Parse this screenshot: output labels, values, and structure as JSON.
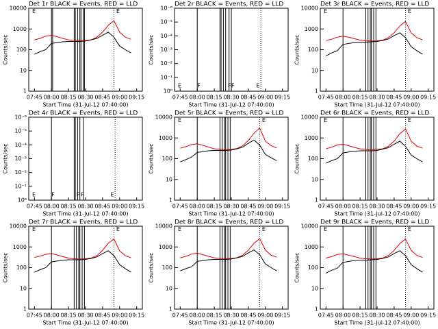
{
  "chart_data": [
    {
      "type": "line",
      "title": "Det 1r BLACK = Events, RED = LLD",
      "xlabel": "Start Time (31-Jul-12 07:40:00)",
      "ylabel": "Counts/sec",
      "x": [
        "07:45",
        "07:50",
        "07:55",
        "08:00",
        "08:05",
        "08:10",
        "08:15",
        "08:20",
        "08:25",
        "08:30",
        "08:35",
        "08:40",
        "08:45",
        "08:50",
        "08:55",
        "09:00",
        "09:05",
        "09:10"
      ],
      "series": [
        {
          "color": "#e00000",
          "values": [
            300,
            350,
            450,
            500,
            420,
            350,
            300,
            280,
            270,
            280,
            300,
            400,
            700,
            1500,
            2500,
            700,
            400,
            320
          ]
        },
        {
          "color": "#000000",
          "values": [
            60,
            80,
            100,
            200,
            220,
            240,
            250,
            250,
            250,
            260,
            300,
            350,
            500,
            700,
            400,
            150,
            100,
            70
          ]
        }
      ],
      "xlim": [
        "07:40",
        "09:20"
      ],
      "xticks": [
        "07:45",
        "08:00",
        "08:15",
        "08:30",
        "08:45",
        "09:00",
        "09:15"
      ],
      "ylim": [
        1,
        10000
      ],
      "yticks": [
        1,
        10,
        100,
        1000,
        10000
      ],
      "log_y": true,
      "vlines": [
        "08:00",
        "08:01",
        "08:20",
        "08:21",
        "08:23",
        "08:25",
        "08:26",
        "08:28",
        "08:29"
      ],
      "dotted_vlines": [
        "08:55"
      ],
      "annotations": [
        {
          "text": "E",
          "x": "07:43",
          "y": 7000
        },
        {
          "text": "E",
          "x": "08:57",
          "y": 7000
        }
      ]
    },
    {
      "type": "line",
      "title": "Det 2r BLACK = Events, RED = LLD",
      "xlabel": "Start Time (31-Jul-12 07:40:00)",
      "ylabel": "Counts/sec",
      "series": [],
      "xlim": [
        "07:40",
        "09:20"
      ],
      "xticks": [
        "07:45",
        "08:00",
        "08:15",
        "08:30",
        "08:45",
        "09:00",
        "09:15"
      ],
      "ylim": [
        1,
        1e-06
      ],
      "yticks": [
        {
          "value": 1e-06,
          "label": "10⁻⁶"
        },
        {
          "value": 1e-05,
          "label": "10⁻⁵"
        },
        {
          "value": 0.0001,
          "label": "10⁻⁴"
        },
        {
          "value": 0.001,
          "label": "10⁻³"
        },
        {
          "value": 0.01,
          "label": "10⁻²"
        },
        {
          "value": 0.1,
          "label": "10⁻¹"
        },
        {
          "value": 1,
          "label": "10⁰"
        }
      ],
      "log_y": true,
      "vlines": [
        "08:00",
        "08:20",
        "08:21",
        "08:23",
        "08:25",
        "08:28",
        "08:30"
      ],
      "dotted_vlines": [
        "08:56"
      ],
      "annotations": [
        {
          "text": "E",
          "x": "07:43",
          "y": 0.4
        },
        {
          "text": "F",
          "x": "08:00",
          "y": 0.4
        },
        {
          "text": "F",
          "x": "08:27",
          "y": 0.4
        },
        {
          "text": "F",
          "x": "08:30",
          "y": 0.4
        },
        {
          "text": "E",
          "x": "08:52",
          "y": 0.4
        }
      ]
    },
    {
      "type": "line",
      "title": "Det 3r BLACK = Events, RED = LLD",
      "xlabel": "Start Time (31-Jul-12 07:40:00)",
      "ylabel": "Counts/sec",
      "x": [
        "07:45",
        "07:50",
        "07:55",
        "08:00",
        "08:05",
        "08:10",
        "08:15",
        "08:20",
        "08:25",
        "08:30",
        "08:35",
        "08:40",
        "08:45",
        "08:50",
        "08:55",
        "09:00",
        "09:05",
        "09:10"
      ],
      "series": [
        {
          "color": "#e00000",
          "values": [
            280,
            320,
            400,
            450,
            400,
            340,
            290,
            270,
            260,
            270,
            290,
            380,
            650,
            1400,
            2300,
            650,
            380,
            300
          ]
        },
        {
          "color": "#000000",
          "values": [
            50,
            70,
            90,
            180,
            200,
            220,
            230,
            230,
            240,
            250,
            280,
            330,
            480,
            650,
            380,
            140,
            90,
            60
          ]
        }
      ],
      "xlim": [
        "07:40",
        "09:20"
      ],
      "xticks": [
        "07:45",
        "08:00",
        "08:15",
        "08:30",
        "08:45",
        "09:00",
        "09:15"
      ],
      "ylim": [
        1,
        10000
      ],
      "yticks": [
        1,
        10,
        100,
        1000,
        10000
      ],
      "log_y": true,
      "vlines": [
        "08:00",
        "08:20",
        "08:22",
        "08:24",
        "08:25",
        "08:27",
        "08:29"
      ],
      "dotted_vlines": [
        "08:55"
      ],
      "annotations": [
        {
          "text": "E",
          "x": "07:43",
          "y": 7000
        },
        {
          "text": "E",
          "x": "08:57",
          "y": 7000
        }
      ]
    },
    {
      "type": "line",
      "title": "Det 4r BLACK = Events, RED = LLD",
      "xlabel": "Start Time (31-Jul-12 07:40:00)",
      "ylabel": "Counts/sec",
      "series": [],
      "xlim": [
        "07:40",
        "09:20"
      ],
      "xticks": [
        "07:45",
        "08:00",
        "08:15",
        "08:30",
        "08:45",
        "09:00",
        "09:15"
      ],
      "ylim": [
        1,
        1e-06
      ],
      "yticks": [
        {
          "value": 1e-06,
          "label": "10⁻⁶"
        },
        {
          "value": 1e-05,
          "label": "10⁻⁵"
        },
        {
          "value": 0.0001,
          "label": "10⁻⁴"
        },
        {
          "value": 0.001,
          "label": "10⁻³"
        },
        {
          "value": 0.01,
          "label": "10⁻²"
        },
        {
          "value": 0.1,
          "label": "10⁻¹"
        },
        {
          "value": 1,
          "label": "10⁰"
        }
      ],
      "log_y": true,
      "vlines": [
        "08:00",
        "08:20",
        "08:21",
        "08:23",
        "08:25",
        "08:28"
      ],
      "dotted_vlines": [
        "08:56"
      ],
      "annotations": [
        {
          "text": "E",
          "x": "07:43",
          "y": 0.4
        },
        {
          "text": "F",
          "x": "08:00",
          "y": 0.4
        },
        {
          "text": "F",
          "x": "08:22",
          "y": 0.4
        },
        {
          "text": "F",
          "x": "08:26",
          "y": 0.4
        },
        {
          "text": "E",
          "x": "08:52",
          "y": 0.4
        }
      ]
    },
    {
      "type": "line",
      "title": "Det 5r BLACK = Events, RED = LLD",
      "xlabel": "Start Time (31-Jul-12 07:40:00)",
      "ylabel": "Counts/sec",
      "x": [
        "07:45",
        "07:50",
        "07:55",
        "08:00",
        "08:05",
        "08:10",
        "08:15",
        "08:20",
        "08:25",
        "08:30",
        "08:35",
        "08:40",
        "08:45",
        "08:50",
        "08:55",
        "09:00",
        "09:05",
        "09:10"
      ],
      "series": [
        {
          "color": "#e00000",
          "values": [
            320,
            380,
            480,
            520,
            440,
            360,
            300,
            280,
            270,
            280,
            310,
            420,
            750,
            1700,
            3000,
            700,
            420,
            330
          ]
        },
        {
          "color": "#000000",
          "values": [
            70,
            90,
            120,
            200,
            220,
            240,
            250,
            250,
            250,
            260,
            300,
            360,
            550,
            800,
            450,
            160,
            110,
            80
          ]
        }
      ],
      "xlim": [
        "07:40",
        "09:20"
      ],
      "xticks": [
        "07:45",
        "08:00",
        "08:15",
        "08:30",
        "08:45",
        "09:00",
        "09:15"
      ],
      "ylim": [
        1,
        10000
      ],
      "yticks": [
        1,
        10,
        100,
        1000,
        10000
      ],
      "log_y": true,
      "vlines": [
        "08:00",
        "08:20",
        "08:22",
        "08:24",
        "08:25",
        "08:27",
        "08:29"
      ],
      "dotted_vlines": [
        "08:55"
      ],
      "annotations": [
        {
          "text": "E",
          "x": "07:43",
          "y": 7000
        },
        {
          "text": "E",
          "x": "08:57",
          "y": 7000
        }
      ]
    },
    {
      "type": "line",
      "title": "Det 6r BLACK = Events, RED = LLD",
      "xlabel": "Start Time (31-Jul-12 07:40:00)",
      "ylabel": "Counts/sec",
      "x": [
        "07:45",
        "07:50",
        "07:55",
        "08:00",
        "08:05",
        "08:10",
        "08:15",
        "08:20",
        "08:25",
        "08:30",
        "08:35",
        "08:40",
        "08:45",
        "08:50",
        "08:55",
        "09:00",
        "09:05",
        "09:10"
      ],
      "series": [
        {
          "color": "#e00000",
          "values": [
            300,
            360,
            460,
            500,
            420,
            350,
            300,
            280,
            270,
            280,
            300,
            400,
            700,
            1600,
            2700,
            700,
            400,
            320
          ]
        },
        {
          "color": "#000000",
          "values": [
            60,
            80,
            100,
            190,
            210,
            230,
            240,
            240,
            240,
            250,
            290,
            340,
            500,
            700,
            400,
            150,
            100,
            70
          ]
        }
      ],
      "xlim": [
        "07:40",
        "09:20"
      ],
      "xticks": [
        "07:45",
        "08:00",
        "08:15",
        "08:30",
        "08:45",
        "09:00",
        "09:15"
      ],
      "ylim": [
        1,
        10000
      ],
      "yticks": [
        1,
        10,
        100,
        1000,
        10000
      ],
      "log_y": true,
      "vlines": [
        "08:00",
        "08:20",
        "08:22",
        "08:24",
        "08:25",
        "08:27",
        "08:29"
      ],
      "dotted_vlines": [
        "08:55"
      ],
      "annotations": [
        {
          "text": "E",
          "x": "07:43",
          "y": 7000
        },
        {
          "text": "E",
          "x": "08:57",
          "y": 7000
        }
      ]
    },
    {
      "type": "line",
      "title": "Det 7r BLACK = Events, RED = LLD",
      "xlabel": "Start Time (31-Jul-12 07:40:00)",
      "ylabel": "Counts/sec",
      "x": [
        "07:45",
        "07:50",
        "07:55",
        "08:00",
        "08:05",
        "08:10",
        "08:15",
        "08:20",
        "08:25",
        "08:30",
        "08:35",
        "08:40",
        "08:45",
        "08:50",
        "08:55",
        "09:00",
        "09:05",
        "09:10"
      ],
      "series": [
        {
          "color": "#e00000",
          "values": [
            310,
            360,
            440,
            480,
            410,
            340,
            290,
            270,
            260,
            270,
            290,
            380,
            680,
            1500,
            2400,
            650,
            380,
            300
          ]
        },
        {
          "color": "#000000",
          "values": [
            60,
            80,
            100,
            190,
            210,
            230,
            240,
            240,
            240,
            250,
            280,
            330,
            480,
            650,
            380,
            140,
            90,
            60
          ]
        }
      ],
      "xlim": [
        "07:40",
        "09:20"
      ],
      "xticks": [
        "07:45",
        "08:00",
        "08:15",
        "08:30",
        "08:45",
        "09:00",
        "09:15"
      ],
      "ylim": [
        1,
        10000
      ],
      "yticks": [
        1,
        10,
        100,
        1000,
        10000
      ],
      "log_y": true,
      "vlines": [
        "08:00",
        "08:20",
        "08:22",
        "08:24",
        "08:25",
        "08:27",
        "08:29"
      ],
      "dotted_vlines": [
        "08:55"
      ],
      "annotations": [
        {
          "text": "E",
          "x": "07:43",
          "y": 7000
        },
        {
          "text": "E",
          "x": "08:57",
          "y": 7000
        }
      ]
    },
    {
      "type": "line",
      "title": "Det 8r BLACK = Events, RED = LLD",
      "xlabel": "Start Time (31-Jul-12 07:40:00)",
      "ylabel": "Counts/sec",
      "x": [
        "07:45",
        "07:50",
        "07:55",
        "08:00",
        "08:05",
        "08:10",
        "08:15",
        "08:20",
        "08:25",
        "08:30",
        "08:35",
        "08:40",
        "08:45",
        "08:50",
        "08:55",
        "09:00",
        "09:05",
        "09:10"
      ],
      "series": [
        {
          "color": "#e00000",
          "values": [
            300,
            350,
            450,
            500,
            420,
            350,
            300,
            280,
            270,
            280,
            300,
            400,
            700,
            1500,
            2500,
            700,
            400,
            320
          ]
        },
        {
          "color": "#000000",
          "values": [
            70,
            90,
            110,
            200,
            220,
            240,
            250,
            250,
            250,
            260,
            300,
            350,
            520,
            720,
            420,
            150,
            100,
            70
          ]
        }
      ],
      "xlim": [
        "07:40",
        "09:20"
      ],
      "xticks": [
        "07:45",
        "08:00",
        "08:15",
        "08:30",
        "08:45",
        "09:00",
        "09:15"
      ],
      "ylim": [
        1,
        10000
      ],
      "yticks": [
        1,
        10,
        100,
        1000,
        10000
      ],
      "log_y": true,
      "vlines": [
        "08:00",
        "08:20",
        "08:22",
        "08:24",
        "08:25",
        "08:27",
        "08:29"
      ],
      "dotted_vlines": [
        "08:55"
      ],
      "annotations": [
        {
          "text": "E",
          "x": "07:43",
          "y": 7000
        },
        {
          "text": "E",
          "x": "08:57",
          "y": 7000
        }
      ]
    },
    {
      "type": "line",
      "title": "Det 9r BLACK = Events, RED = LLD",
      "xlabel": "Start Time (31-Jul-12 07:40:00)",
      "ylabel": "Counts/sec",
      "x": [
        "07:45",
        "07:50",
        "07:55",
        "08:00",
        "08:05",
        "08:10",
        "08:15",
        "08:20",
        "08:25",
        "08:30",
        "08:35",
        "08:40",
        "08:45",
        "08:50",
        "08:55",
        "09:00",
        "09:05",
        "09:10"
      ],
      "series": [
        {
          "color": "#e00000",
          "values": [
            290,
            340,
            430,
            470,
            400,
            340,
            290,
            270,
            260,
            270,
            290,
            390,
            680,
            1450,
            2400,
            680,
            390,
            310
          ]
        },
        {
          "color": "#000000",
          "values": [
            55,
            75,
            95,
            180,
            200,
            220,
            230,
            230,
            240,
            250,
            280,
            330,
            480,
            650,
            380,
            140,
            90,
            60
          ]
        }
      ],
      "xlim": [
        "07:40",
        "09:20"
      ],
      "xticks": [
        "07:45",
        "08:00",
        "08:15",
        "08:30",
        "08:45",
        "09:00",
        "09:15"
      ],
      "ylim": [
        1,
        10000
      ],
      "yticks": [
        1,
        10,
        100,
        1000,
        10000
      ],
      "log_y": true,
      "vlines": [
        "08:00",
        "08:20",
        "08:22",
        "08:24",
        "08:25",
        "08:27",
        "08:29"
      ],
      "dotted_vlines": [
        "08:55"
      ],
      "annotations": [
        {
          "text": "E",
          "x": "07:43",
          "y": 7000
        },
        {
          "text": "E",
          "x": "08:57",
          "y": 7000
        }
      ]
    }
  ]
}
